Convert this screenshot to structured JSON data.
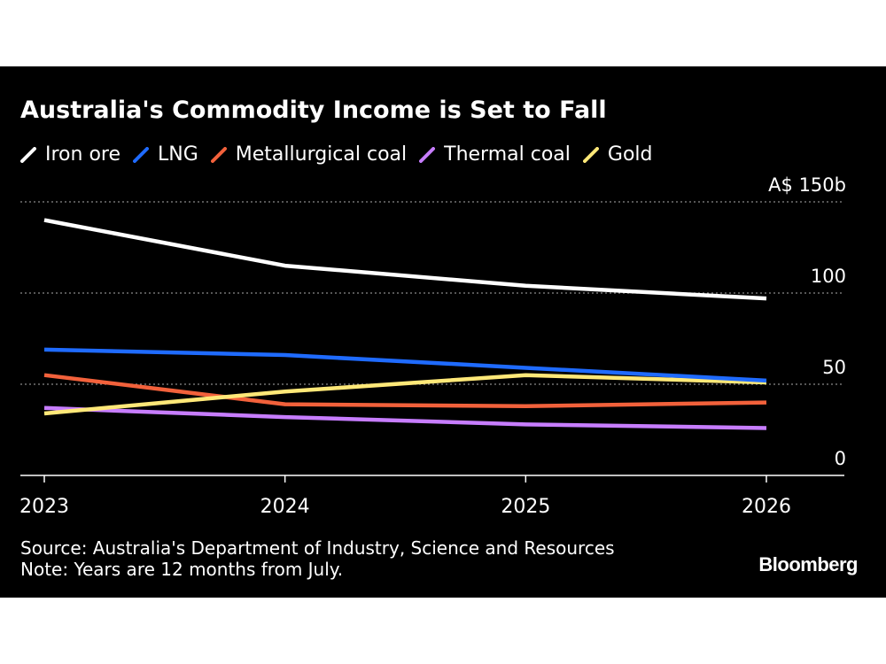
{
  "chart_data": {
    "type": "line",
    "title": "Australia's Commodity Income is Set to Fall",
    "x": [
      "2023",
      "2024",
      "2025",
      "2026"
    ],
    "y_tick_labels": [
      "A$ 150b",
      "100",
      "50",
      "0"
    ],
    "y_ticks": [
      150,
      100,
      50,
      0
    ],
    "ylim": [
      0,
      150
    ],
    "grid": "horizontal dotted",
    "legend_position": "top-left",
    "series": [
      {
        "name": "Iron ore",
        "color": "#ffffff",
        "values": [
          140,
          115,
          104,
          97
        ]
      },
      {
        "name": "LNG",
        "color": "#1f6bff",
        "values": [
          69,
          66,
          59,
          52
        ]
      },
      {
        "name": "Metallurgical coal",
        "color": "#f2613b",
        "values": [
          55,
          39,
          38,
          40
        ]
      },
      {
        "name": "Thermal coal",
        "color": "#c77dff",
        "values": [
          37,
          32,
          28,
          26
        ]
      },
      {
        "name": "Gold",
        "color": "#ffe878",
        "values": [
          34,
          46,
          55,
          51
        ]
      }
    ]
  },
  "footer": {
    "source": "Source: Australia's Department of Industry, Science and Resources",
    "note": "Note: Years are 12 months from July."
  },
  "brand": "Bloomberg"
}
